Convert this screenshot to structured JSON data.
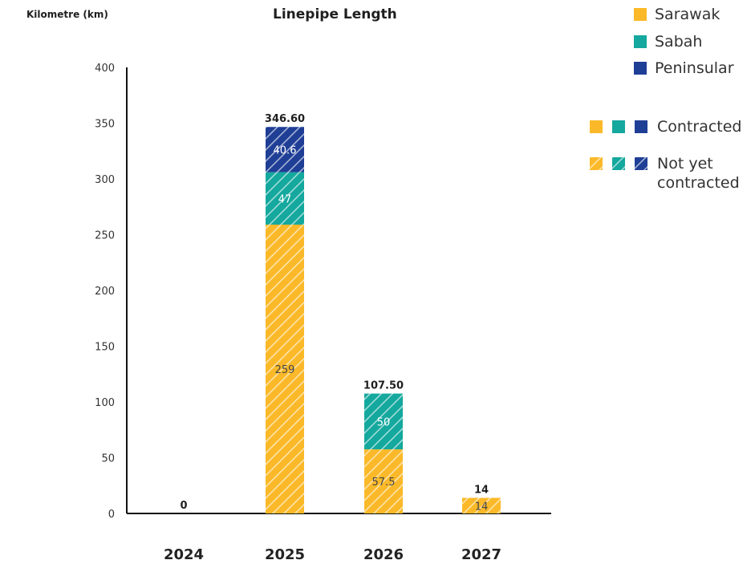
{
  "chart_data": {
    "type": "bar",
    "stacked": true,
    "title": "Linepipe Length",
    "ylabel": "Kilometre (km)",
    "xlabel": "",
    "ylim": [
      0,
      400
    ],
    "yticks": [
      0,
      50,
      100,
      150,
      200,
      250,
      300,
      350,
      400
    ],
    "categories": [
      "2024",
      "2025",
      "2026",
      "2027"
    ],
    "series": [
      {
        "name": "Sarawak",
        "color": "#FBB929",
        "values": [
          0,
          259,
          57.5,
          14
        ],
        "labels": [
          "",
          "259",
          "57.5",
          "14"
        ]
      },
      {
        "name": "Sabah",
        "color": "#14A89E",
        "values": [
          0,
          47,
          50,
          0
        ],
        "labels": [
          "",
          "47",
          "50",
          ""
        ]
      },
      {
        "name": "Peninsular",
        "color": "#1F3E96",
        "values": [
          0,
          40.6,
          0,
          0
        ],
        "labels": [
          "",
          "40.6",
          "",
          ""
        ]
      }
    ],
    "totals": [
      "0",
      "346.60",
      "107.50",
      "14"
    ],
    "legend": {
      "placement": "top-right",
      "status": [
        {
          "name": "Contracted",
          "pattern": "solid"
        },
        {
          "name": "Not yet contracted",
          "pattern": "hatched",
          "lines": [
            "Not yet",
            "contracted"
          ]
        }
      ]
    },
    "note_all_bars_pattern": "hatched",
    "grid": false
  }
}
